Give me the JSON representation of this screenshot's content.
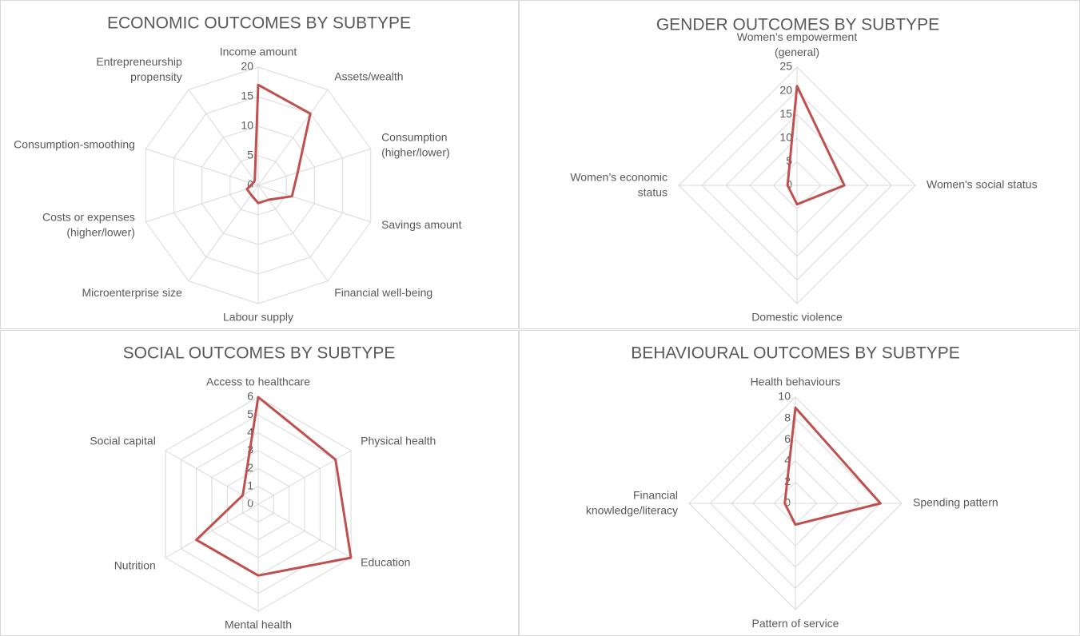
{
  "chart_data": [
    {
      "type": "radar",
      "title": "ECONOMIC OUTCOMES BY SUBTYPE",
      "categories": [
        "Income amount",
        "Assets/wealth",
        "Consumption (higher/lower)",
        "Savings amount",
        "Financial well-being",
        "Labour supply",
        "Microenterprise size",
        "Costs or expenses (higher/lower)",
        "Consumption-smoothing",
        "Entrepreneurship propensity"
      ],
      "values": [
        17,
        15,
        7,
        6,
        3,
        3,
        2,
        2,
        1,
        1
      ],
      "color": "#c0504d",
      "ylim": [
        0,
        20
      ],
      "yticks": [
        0,
        5,
        10,
        15,
        20
      ],
      "grid": true
    },
    {
      "type": "radar",
      "title": "GENDER OUTCOMES BY SUBTYPE",
      "categories": [
        "Women’s empowerment (general)",
        "Women's social status",
        "Domestic violence",
        "Women’s economic status"
      ],
      "values": [
        21,
        10,
        4,
        2
      ],
      "color": "#c0504d",
      "ylim": [
        0,
        25
      ],
      "yticks": [
        0,
        5,
        10,
        15,
        20,
        25
      ],
      "grid": true
    },
    {
      "type": "radar",
      "title": "SOCIAL OUTCOMES BY SUBTYPE",
      "categories": [
        "Access to healthcare",
        "Physical health",
        "Education",
        "Mental health",
        "Nutrition",
        "Social capital"
      ],
      "values": [
        6,
        5,
        6,
        4,
        4,
        1
      ],
      "color": "#c0504d",
      "ylim": [
        0,
        6
      ],
      "yticks": [
        0,
        1,
        2,
        3,
        4,
        5,
        6
      ],
      "grid": true
    },
    {
      "type": "radar",
      "title": "BEHAVIOURAL OUTCOMES BY SUBTYPE",
      "categories": [
        "Health behaviours",
        "Spending pattern",
        "Pattern of service usage",
        "Financial knowledge/literacy"
      ],
      "values": [
        9,
        8,
        2,
        1
      ],
      "color": "#c0504d",
      "ylim": [
        0,
        10
      ],
      "yticks": [
        0,
        2,
        4,
        6,
        8,
        10
      ],
      "grid": true
    }
  ]
}
